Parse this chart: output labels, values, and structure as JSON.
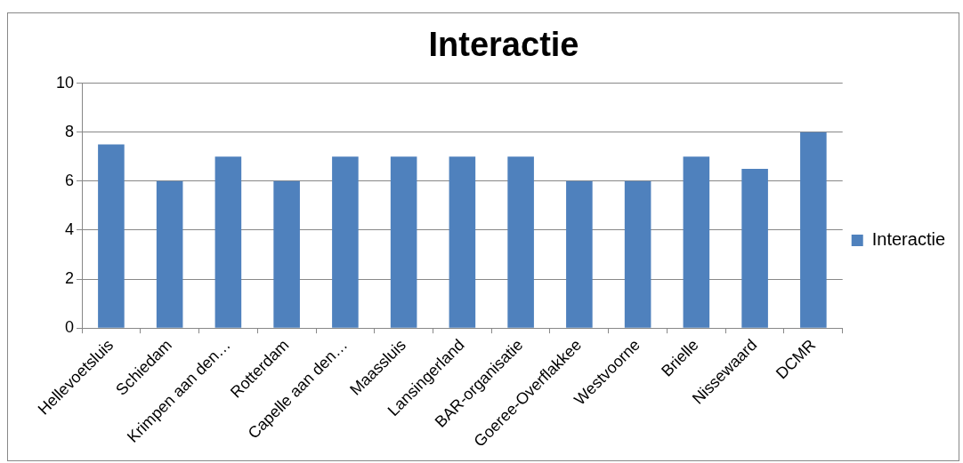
{
  "chart_data": {
    "type": "bar",
    "title": "Interactie",
    "categories": [
      "Hellevoetsluis",
      "Schiedam",
      "Krimpen aan den…",
      "Rotterdam",
      "Capelle aan den…",
      "Maassluis",
      "Lansingerland",
      "BAR-organisatie",
      "Goeree-Overflakkee",
      "Westvoorne",
      "Brielle",
      "Nissewaard",
      "DCMR"
    ],
    "series": [
      {
        "name": "Interactie",
        "color": "#4f81bd",
        "values": [
          7.5,
          6,
          7,
          6,
          7,
          7,
          7,
          7,
          6,
          6,
          7,
          6.5,
          8
        ]
      }
    ],
    "ylim": [
      0,
      10
    ],
    "yticks": [
      0,
      2,
      4,
      6,
      8,
      10
    ],
    "grid": "y",
    "legend": "right"
  }
}
